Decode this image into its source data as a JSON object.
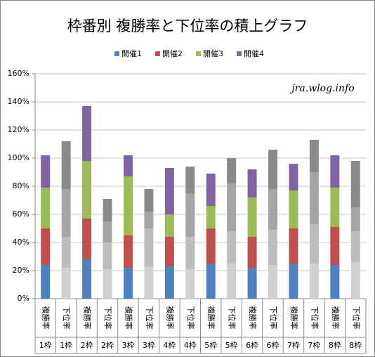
{
  "chart_data": {
    "type": "stacked_bar",
    "title": "枠番別 複勝率と下位率の積上グラフ",
    "annotation": "jra.wlog.info",
    "categories": [
      "複勝率",
      "下位率",
      "複勝率",
      "下位率",
      "複勝率",
      "下位率",
      "複勝率",
      "下位率",
      "複勝率",
      "下位率",
      "複勝率",
      "下位率",
      "複勝率",
      "下位率",
      "複勝率",
      "下位率"
    ],
    "groups": [
      "1枠",
      "1枠",
      "2枠",
      "2枠",
      "3枠",
      "3枠",
      "4枠",
      "4枠",
      "5枠",
      "5枠",
      "6枠",
      "6枠",
      "7枠",
      "7枠",
      "8枠",
      "8枠"
    ],
    "series": [
      {
        "name": "開催1",
        "color": "#4f81bd",
        "alt_color": "#d0d0d0",
        "values": [
          24,
          22,
          28,
          21,
          22,
          23,
          23,
          21,
          25,
          25,
          22,
          24,
          25,
          25,
          24,
          26
        ]
      },
      {
        "name": "開催2",
        "color": "#c0504d",
        "alt_color": "#bdbdbd",
        "values": [
          26,
          22,
          29,
          19,
          23,
          27,
          21,
          23,
          25,
          23,
          22,
          25,
          25,
          28,
          27,
          22
        ]
      },
      {
        "name": "開催3",
        "color": "#9bbb59",
        "alt_color": "#a5a5a5",
        "values": [
          29,
          34,
          41,
          15,
          42,
          12,
          16,
          31,
          16,
          34,
          28,
          29,
          27,
          37,
          28,
          17
        ]
      },
      {
        "name": "開催4",
        "color": "#8064a2",
        "alt_color": "#8a8a8a",
        "values": [
          23,
          34,
          39,
          16,
          15,
          16,
          33,
          19,
          23,
          18,
          20,
          28,
          19,
          23,
          23,
          33
        ]
      }
    ],
    "alt_color_categories": [
      1,
      3,
      5,
      7,
      9,
      11,
      13,
      15
    ],
    "ylim": [
      0,
      160
    ],
    "yticks": [
      {
        "value": 0,
        "label": "0%"
      },
      {
        "value": 20,
        "label": "20%"
      },
      {
        "value": 40,
        "label": "40%"
      },
      {
        "value": 60,
        "label": "60%"
      },
      {
        "value": 80,
        "label": "80%"
      },
      {
        "value": 100,
        "label": "100%"
      },
      {
        "value": 120,
        "label": "120%"
      },
      {
        "value": 140,
        "label": "140%"
      },
      {
        "value": 160,
        "label": "160%"
      }
    ],
    "grid": true,
    "legend": "top"
  }
}
